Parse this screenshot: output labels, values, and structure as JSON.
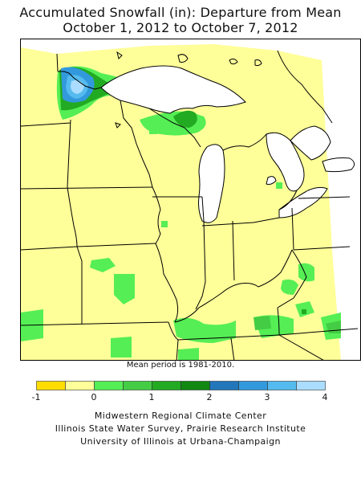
{
  "title": {
    "line1": "Accumulated Snowfall (in): Departure from Mean",
    "line2": "October 1, 2012 to October 7, 2012"
  },
  "map": {
    "variable": "Accumulated snowfall departure from mean",
    "units": "in",
    "background_color": "#ffff99",
    "land_outline": "#000000",
    "lake_color": "#ffffff"
  },
  "mean_note": "Mean period is 1981-2010.",
  "legend": {
    "tick_labels": [
      "-1",
      "0",
      "1",
      "2",
      "3",
      "4"
    ],
    "bins": [
      {
        "from": -1.0,
        "to": -0.5,
        "color": "#ffdd00"
      },
      {
        "from": -0.5,
        "to": 0.0,
        "color": "#ffff99"
      },
      {
        "from": 0.0,
        "to": 0.5,
        "color": "#55ee55"
      },
      {
        "from": 0.5,
        "to": 1.0,
        "color": "#44cc44"
      },
      {
        "from": 1.0,
        "to": 1.5,
        "color": "#22aa22"
      },
      {
        "from": 1.5,
        "to": 2.0,
        "color": "#118811"
      },
      {
        "from": 2.0,
        "to": 2.5,
        "color": "#2277bb"
      },
      {
        "from": 2.5,
        "to": 3.0,
        "color": "#3399dd"
      },
      {
        "from": 3.0,
        "to": 3.5,
        "color": "#55bbee"
      },
      {
        "from": 3.5,
        "to": 4.0,
        "color": "#aaddff"
      }
    ]
  },
  "credits": [
    "Midwestern Regional Climate Center",
    "Illinois State Water Survey, Prairie Research Institute",
    "University of Illinois at Urbana-Champaign"
  ]
}
